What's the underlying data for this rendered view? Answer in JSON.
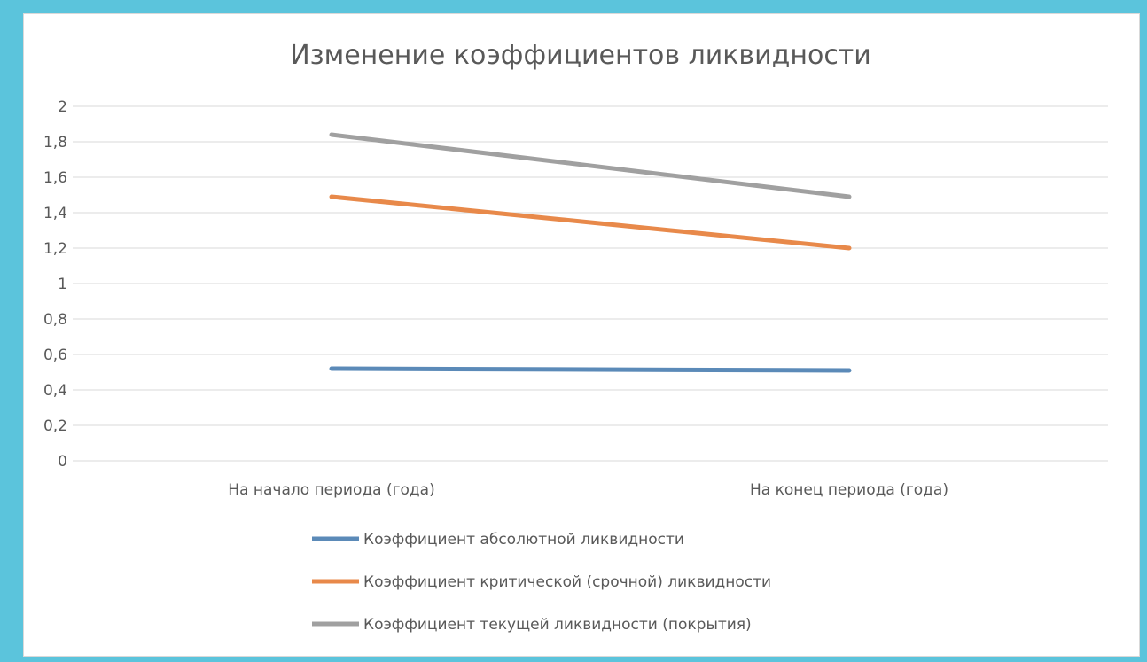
{
  "chart_data": {
    "type": "line",
    "title": "Изменение коэффициентов ликвидности",
    "xlabel": "",
    "ylabel": "",
    "categories": [
      "На начало периода (года)",
      "На конец периода (года)"
    ],
    "ylim": [
      0,
      2
    ],
    "yticks": [
      0,
      0.2,
      0.4,
      0.6,
      0.8,
      1,
      1.2,
      1.4,
      1.6,
      1.8,
      2
    ],
    "ytick_labels": [
      "0",
      "0,2",
      "0,4",
      "0,6",
      "0,8",
      "1",
      "1,2",
      "1,4",
      "1,6",
      "1,8",
      "2"
    ],
    "grid": true,
    "legend_position": "bottom",
    "series": [
      {
        "name": "Коэффициент абсолютной ликвидности",
        "values": [
          0.52,
          0.51
        ],
        "color": "#5b8ab8"
      },
      {
        "name": "Коэффициент критической (срочной) ликвидности",
        "values": [
          1.49,
          1.2
        ],
        "color": "#e8894a"
      },
      {
        "name": "Коэффициент текущей ликвидности (покрытия)",
        "values": [
          1.84,
          1.49
        ],
        "color": "#a0a0a0"
      }
    ]
  }
}
